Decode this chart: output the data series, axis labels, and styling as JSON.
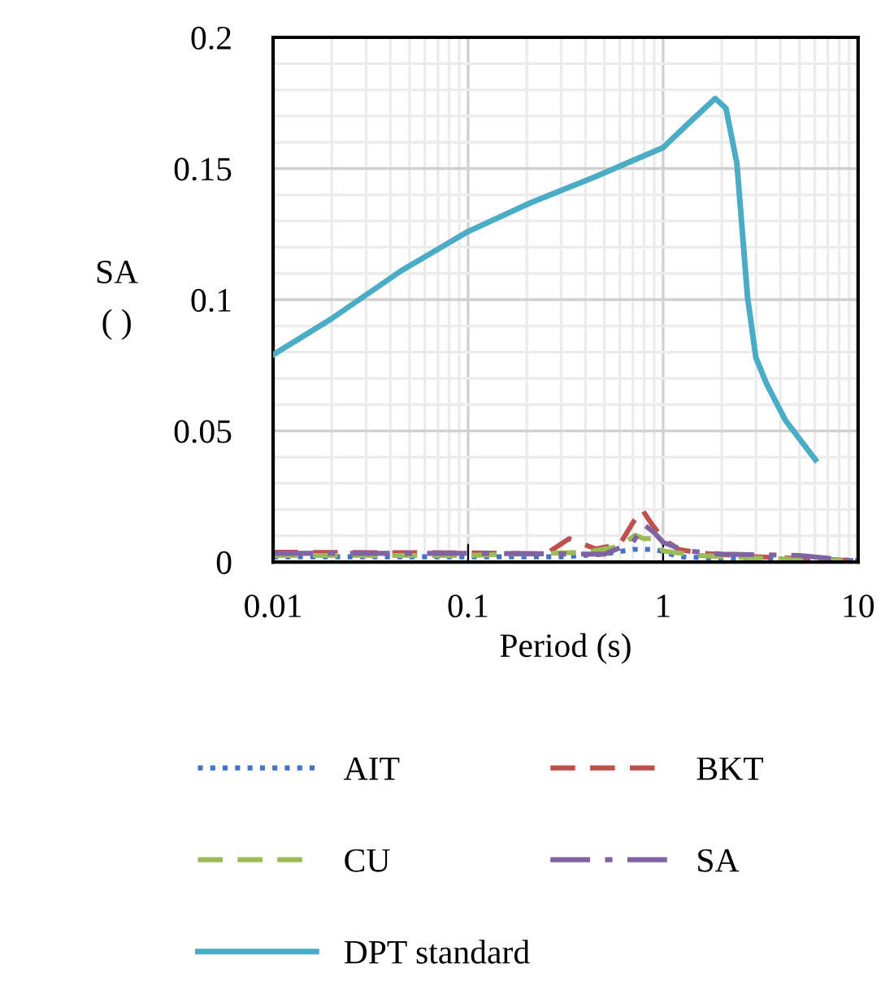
{
  "chart_data": {
    "type": "line",
    "xlabel": "Period (s)",
    "ylabel": "SA\n( )",
    "log": "x",
    "xlim": [
      0.01,
      10
    ],
    "xticks": [
      0.01,
      0.1,
      1,
      10
    ],
    "ylim": [
      0,
      0.2
    ],
    "yticks": [
      0,
      0.05,
      0.1,
      0.15,
      0.2
    ],
    "grid": true,
    "legend": "bottom",
    "marker": "none",
    "series": [
      {
        "name": "AIT",
        "color": "#4472c4",
        "line_style": "dotted",
        "x": [
          0.01,
          0.1,
          0.3,
          0.5,
          0.7,
          0.9,
          1.0,
          1.2,
          3,
          10
        ],
        "values": [
          0.002,
          0.002,
          0.002,
          0.003,
          0.0048,
          0.0048,
          0.004,
          0.002,
          0.001,
          0.0005
        ]
      },
      {
        "name": "BKT",
        "color": "#c0504d",
        "line_style": "dashed",
        "x": [
          0.01,
          0.1,
          0.25,
          0.33,
          0.45,
          0.6,
          0.7,
          0.78,
          0.88,
          1.0,
          1.2,
          1.6,
          3,
          10
        ],
        "values": [
          0.0037,
          0.0035,
          0.003,
          0.0089,
          0.005,
          0.0068,
          0.015,
          0.02,
          0.0142,
          0.0089,
          0.0048,
          0.0033,
          0.002,
          0.0005
        ]
      },
      {
        "name": "CU",
        "color": "#9bbb59",
        "line_style": "dashed",
        "x": [
          0.01,
          0.1,
          0.4,
          0.6,
          0.72,
          0.8,
          0.9,
          1.0,
          1.5,
          3,
          10
        ],
        "values": [
          0.0025,
          0.0025,
          0.0037,
          0.006,
          0.0102,
          0.0089,
          0.0089,
          0.0042,
          0.0025,
          0.0015,
          0.0003
        ]
      },
      {
        "name": "SA",
        "color": "#8064a2",
        "line_style": "dashdot",
        "x": [
          0.01,
          0.1,
          0.5,
          0.7,
          0.8,
          0.9,
          1.0,
          1.3,
          2,
          5,
          10
        ],
        "values": [
          0.0033,
          0.0033,
          0.003,
          0.0075,
          0.0142,
          0.0112,
          0.0075,
          0.0043,
          0.003,
          0.0025,
          0.0003
        ]
      },
      {
        "name": "DPT standard",
        "color": "#4bacc6",
        "line_style": "solid",
        "x": [
          0.01,
          0.0197,
          0.0453,
          0.1,
          0.21,
          0.453,
          1.0,
          1.34,
          1.85,
          2.1,
          2.39,
          2.71,
          2.99,
          3.39,
          4.24,
          6.04
        ],
        "values": [
          0.079,
          0.0925,
          0.111,
          0.126,
          0.137,
          0.147,
          0.158,
          0.167,
          0.1767,
          0.173,
          0.152,
          0.101,
          0.078,
          0.068,
          0.054,
          0.039
        ]
      }
    ]
  }
}
